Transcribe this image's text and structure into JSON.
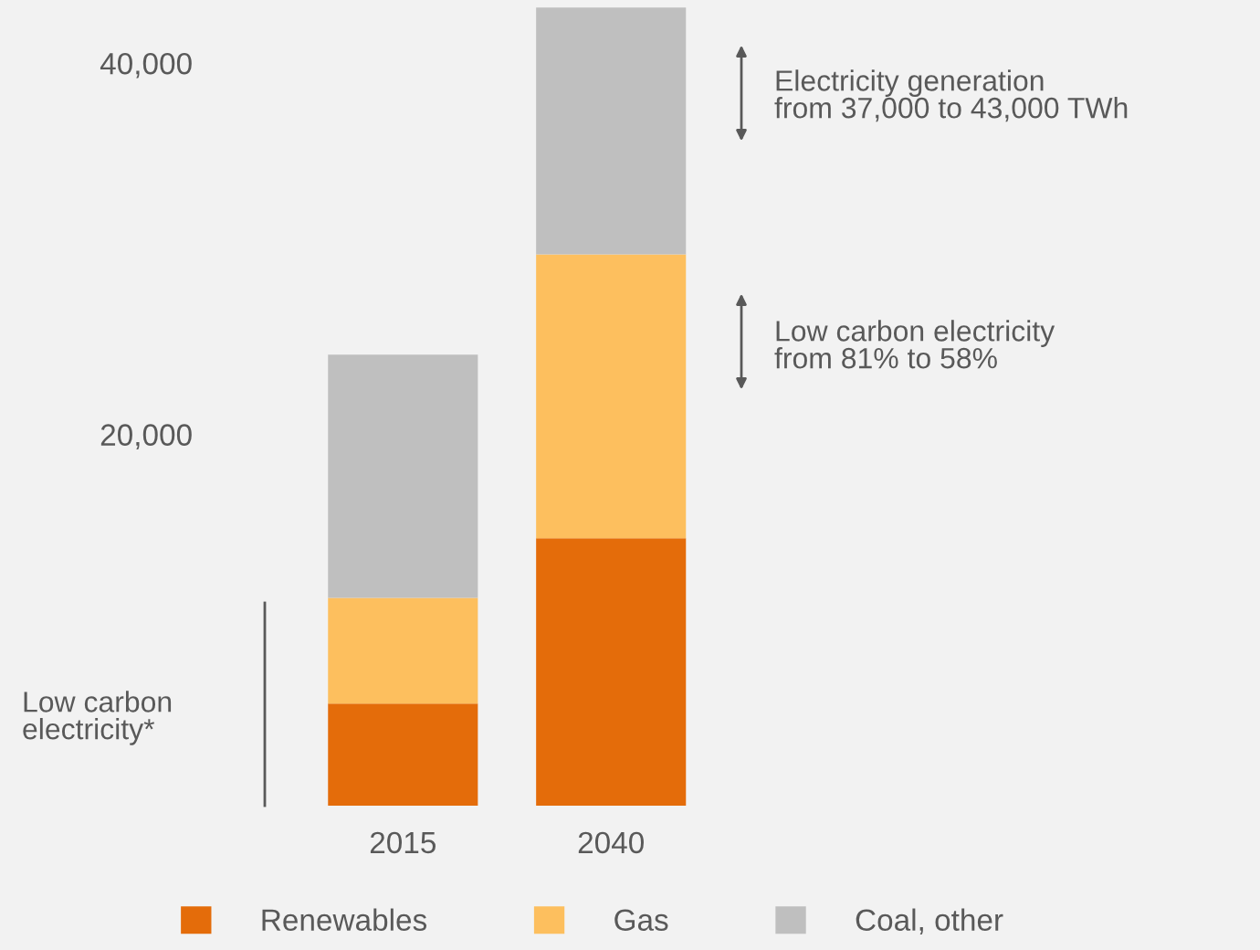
{
  "chart_data": {
    "type": "bar",
    "stacked": true,
    "categories": [
      "2015",
      "2040"
    ],
    "series": [
      {
        "name": "Renewables",
        "color": "#e46c0a",
        "values": [
          5500,
          14400
        ]
      },
      {
        "name": "Gas",
        "color": "#fdbf5e",
        "values": [
          5700,
          15300
        ]
      },
      {
        "name": "Coal, other",
        "color": "#bfbfbf",
        "values": [
          13100,
          13300
        ]
      }
    ],
    "ylim": [
      0,
      43400
    ],
    "yticks": [
      {
        "value": 20000,
        "label": "20,000"
      },
      {
        "value": 40000,
        "label": "40,000"
      }
    ],
    "grid": false,
    "legend": "bottom",
    "annotations": [
      "Electricity generation\nfrom 37,000 to 43,000 TWh",
      "Low carbon electricity\nfrom 81% to 58%",
      "Low carbon\nelectricity*"
    ]
  }
}
